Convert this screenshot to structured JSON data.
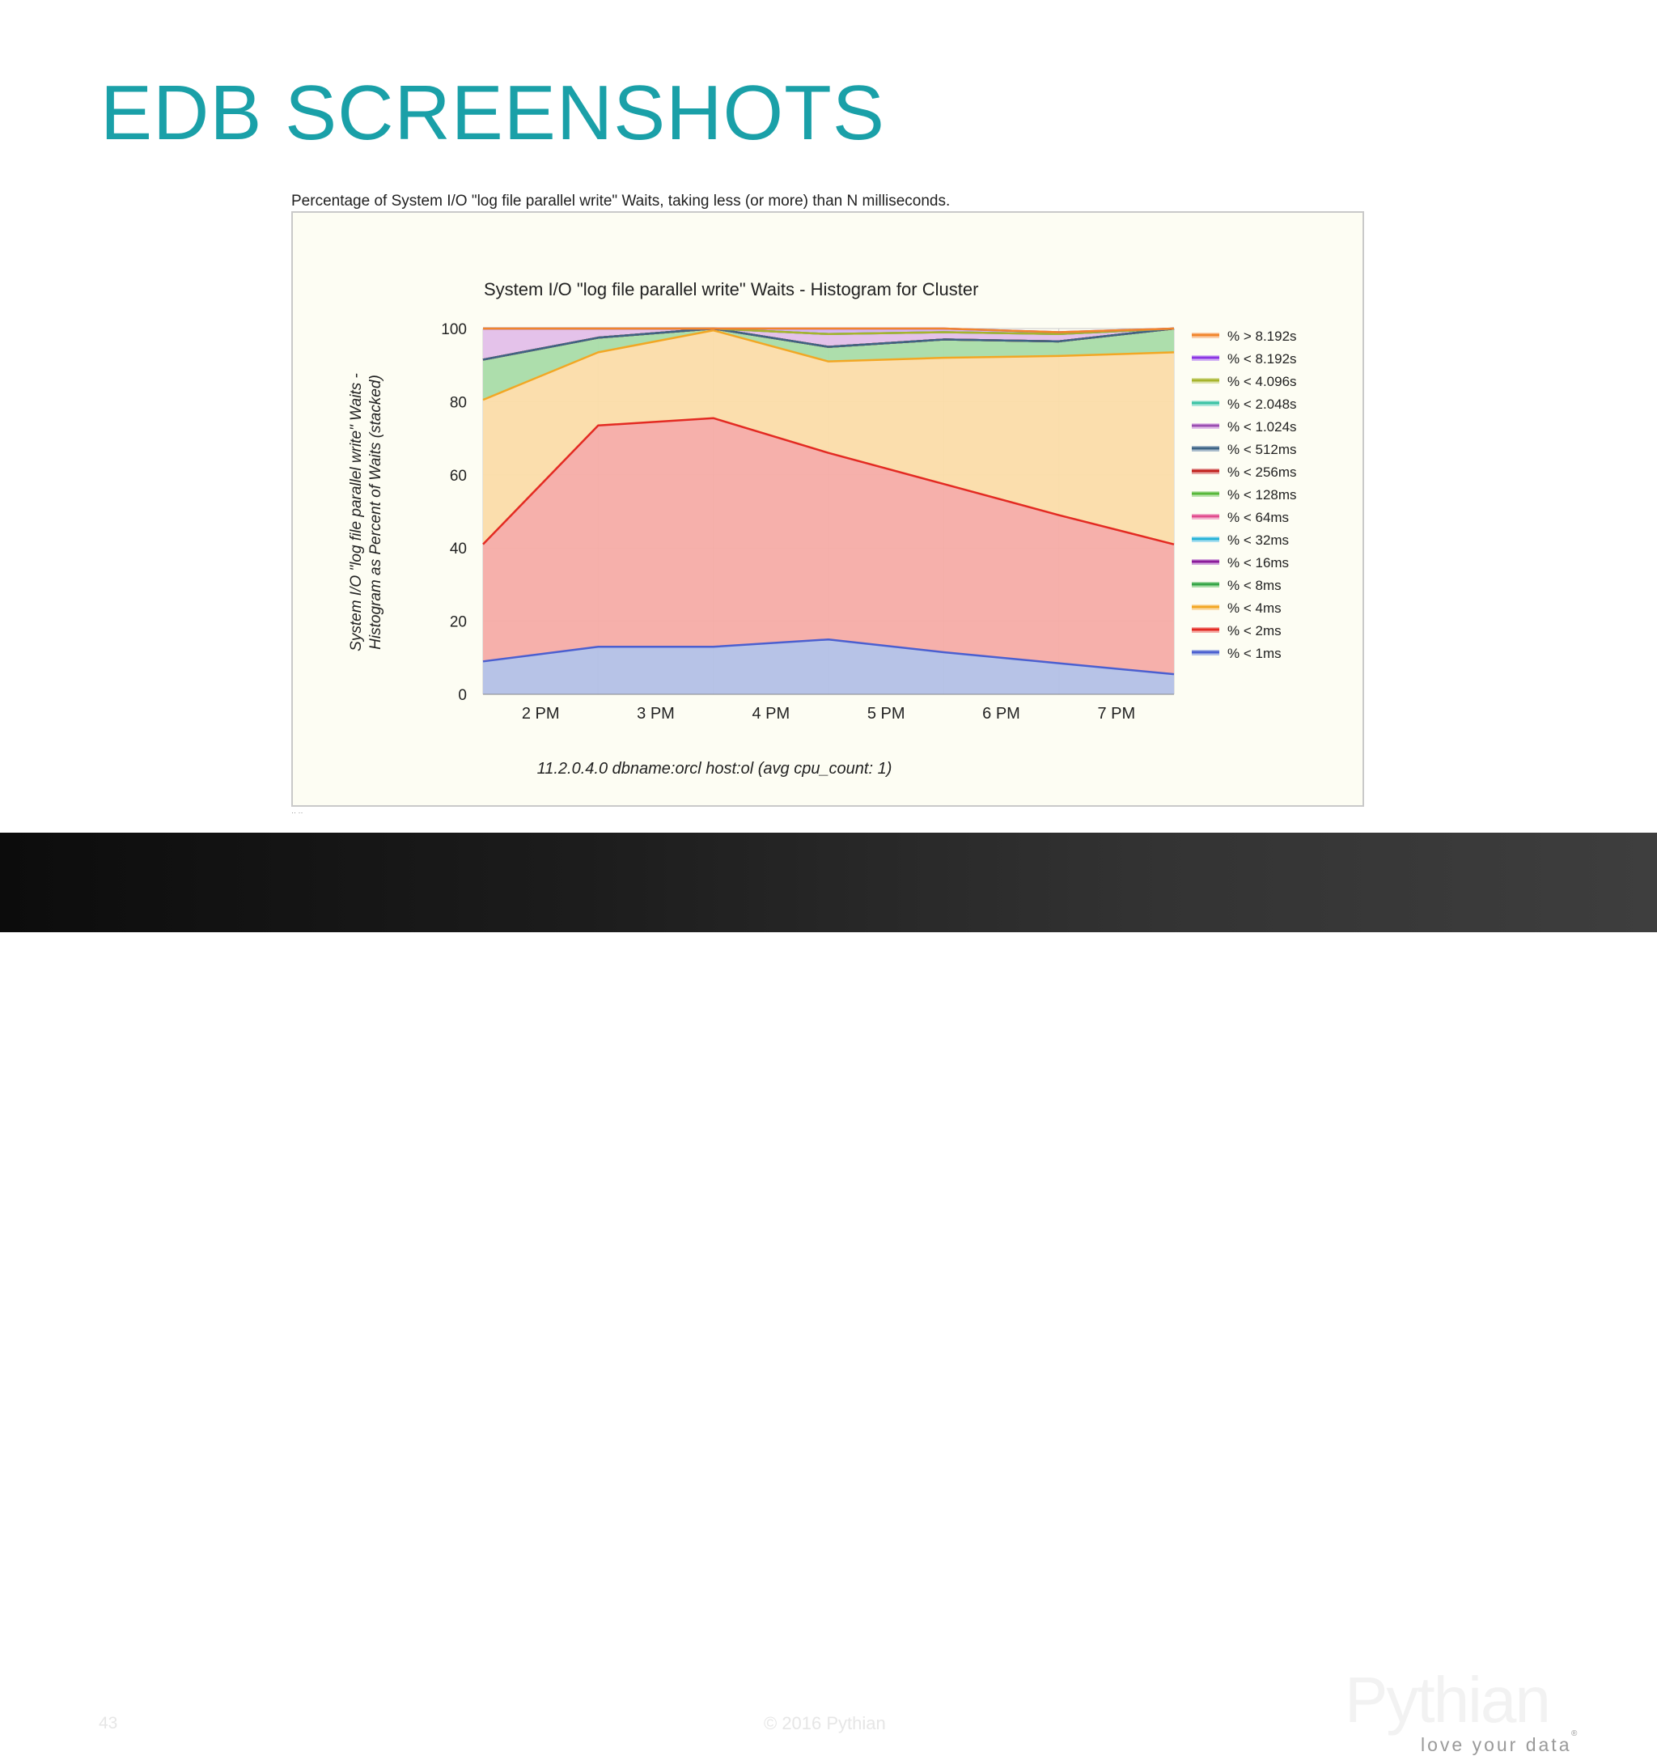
{
  "slide": {
    "title": "EDB SCREENSHOTS",
    "caption": "Percentage of System I/O \"log file parallel write\" Waits, taking less (or more) than N milliseconds.",
    "stub_text": "·· ··"
  },
  "footer": {
    "page_number": "43",
    "copyright": "© 2016 Pythian",
    "logo_name": "Pythian",
    "logo_tagline": "love your data",
    "logo_reg": "®"
  },
  "colors": {
    "title": "#1aa0a8",
    "chart_bg": "#fdfdf3",
    "grid": "#cccccc"
  },
  "chart_data": {
    "type": "area",
    "stacked": true,
    "title": "System I/O \"log file parallel write\" Waits - Histogram for Cluster",
    "xlabel": "11.2.0.4.0 dbname:orcl host:ol (avg cpu_count: 1)",
    "ylabel": [
      "System I/O \"log file parallel write\" Waits -",
      "Histogram as Percent of Waits (stacked)"
    ],
    "x_ticks": [
      "2 PM",
      "3 PM",
      "4 PM",
      "5 PM",
      "6 PM",
      "7 PM"
    ],
    "x_points": [
      1.5,
      2.5,
      3.5,
      4.5,
      5.5,
      6.5,
      7.5
    ],
    "x_range": [
      1.5,
      7.5
    ],
    "ylim": [
      0,
      100
    ],
    "y_ticks": [
      0,
      20,
      40,
      60,
      80,
      100
    ],
    "grid": true,
    "legend_position": "right",
    "series": [
      {
        "name": "% < 1ms",
        "line": "#4b5fd0",
        "fill": "#b3c0e6",
        "values": [
          9,
          13,
          13,
          15,
          11.5,
          8.5,
          5.5
        ]
      },
      {
        "name": "% < 2ms",
        "line": "#e32a22",
        "fill": "#f5aca6",
        "values": [
          32,
          60.5,
          62.5,
          51,
          46,
          40.5,
          35.5
        ]
      },
      {
        "name": "% < 4ms",
        "line": "#f2a724",
        "fill": "#fbdca9",
        "values": [
          39.5,
          20,
          24,
          25,
          34.5,
          43.5,
          52.5
        ]
      },
      {
        "name": "% < 8ms",
        "line": "#34a546",
        "fill": "#a9dca8",
        "values": [
          11,
          4,
          0.5,
          4,
          5,
          4,
          6.5
        ]
      },
      {
        "name": "% < 16ms",
        "line": "#8b1c9a",
        "fill": "#d3a5dc",
        "values": [
          0,
          0,
          0,
          0,
          0,
          0,
          0
        ]
      },
      {
        "name": "% < 32ms",
        "line": "#27b3d6",
        "fill": "#a8dff0",
        "values": [
          0,
          0,
          0,
          0,
          0,
          0,
          0
        ]
      },
      {
        "name": "% < 64ms",
        "line": "#e14c8d",
        "fill": "#f3b5cf",
        "values": [
          0,
          0,
          0,
          0,
          0,
          0,
          0
        ]
      },
      {
        "name": "% < 128ms",
        "line": "#58b83a",
        "fill": "#bde4ae",
        "values": [
          0,
          0,
          0,
          0,
          0,
          0,
          0
        ]
      },
      {
        "name": "% < 256ms",
        "line": "#c2221e",
        "fill": "#e7a6a4",
        "values": [
          0,
          0,
          0,
          0,
          0,
          0,
          0
        ]
      },
      {
        "name": "% < 512ms",
        "line": "#3e6485",
        "fill": "#a9bccc",
        "values": [
          0,
          0,
          0,
          0,
          0,
          0,
          0
        ]
      },
      {
        "name": "% < 1.024s",
        "line": "#9b4fb1",
        "fill": "#e3bfe9",
        "values": [
          8.5,
          2.5,
          0,
          3.5,
          2,
          2,
          0
        ]
      },
      {
        "name": "% < 2.048s",
        "line": "#3cc3a4",
        "fill": "#aee7da",
        "values": [
          0,
          0,
          0,
          0,
          0,
          0,
          0
        ]
      },
      {
        "name": "% < 4.096s",
        "line": "#a7b42c",
        "fill": "#dde4a9",
        "values": [
          0,
          0,
          0,
          0,
          0,
          0,
          0
        ]
      },
      {
        "name": "% < 8.192s",
        "line": "#8c37e3",
        "fill": "#d2b3f4",
        "values": [
          0,
          0,
          0,
          1.5,
          1,
          0.5,
          0
        ]
      },
      {
        "name": "% > 8.192s",
        "line": "#f1852c",
        "fill": "#fad0ad",
        "values": [
          0,
          0,
          0,
          0,
          0,
          0,
          0
        ]
      }
    ]
  }
}
